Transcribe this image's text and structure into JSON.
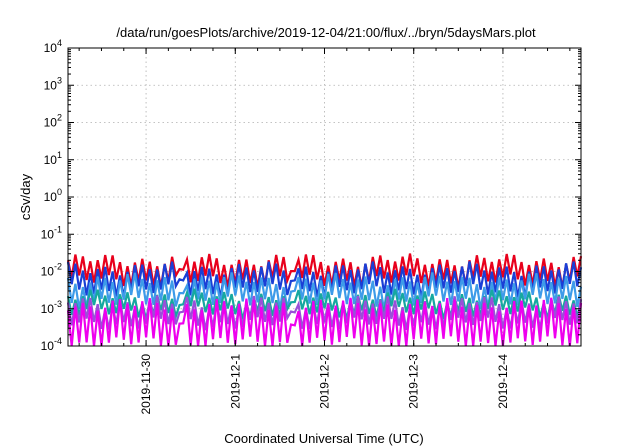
{
  "chart_data": {
    "type": "line",
    "title": "/data/run/goesPlots/archive/2019-12-04/21:00/flux/../bryn/5daysMars.plot",
    "xlabel": "Coordinated Universal Time (UTC)",
    "ylabel": "cSv/day",
    "y_scale": "log",
    "ylim": [
      0.0001,
      10000
    ],
    "xlim": [
      "2019-11-29T03:00",
      "2019-12-04T21:00"
    ],
    "grid": true,
    "y_ticks": [
      {
        "value": 0.0001,
        "base": "10",
        "exp": "-4"
      },
      {
        "value": 0.001,
        "base": "10",
        "exp": "-3"
      },
      {
        "value": 0.01,
        "base": "10",
        "exp": "-2"
      },
      {
        "value": 0.1,
        "base": "10",
        "exp": "-1"
      },
      {
        "value": 1,
        "base": "10",
        "exp": "0"
      },
      {
        "value": 10,
        "base": "10",
        "exp": "1"
      },
      {
        "value": 100,
        "base": "10",
        "exp": "2"
      },
      {
        "value": 1000,
        "base": "10",
        "exp": "3"
      },
      {
        "value": 10000,
        "base": "10",
        "exp": "4"
      }
    ],
    "x_ticks": [
      {
        "value": "2019-11-30T00:00",
        "label": "2019-11-30"
      },
      {
        "value": "2019-12-01T00:00",
        "label": "2019-12-1"
      },
      {
        "value": "2019-12-02T00:00",
        "label": "2019-12-2"
      },
      {
        "value": "2019-12-03T00:00",
        "label": "2019-12-3"
      },
      {
        "value": "2019-12-04T00:00",
        "label": "2019-12-4"
      }
    ],
    "sawtooth": {
      "period_hours": 2,
      "gaps": [
        [
          "2019-11-30T08:00",
          "2019-11-30T11:00"
        ],
        [
          "2019-12-01T14:00",
          "2019-12-01T17:00"
        ]
      ]
    },
    "series": [
      {
        "color": "#e8001c",
        "peak": 0.02,
        "trough": 0.0055
      },
      {
        "color": "#1a3fd6",
        "peak": 0.012,
        "trough": 0.003
      },
      {
        "color": "#3d9be9",
        "peak": 0.006,
        "trough": 0.0015
      },
      {
        "color": "#16a8a0",
        "peak": 0.0022,
        "trough": 0.0008
      },
      {
        "color": "#9a4fd9",
        "peak": 0.0015,
        "trough": 0.0004
      },
      {
        "color": "#ee00ee",
        "peak": 0.0013,
        "trough": 0.00012
      }
    ]
  }
}
